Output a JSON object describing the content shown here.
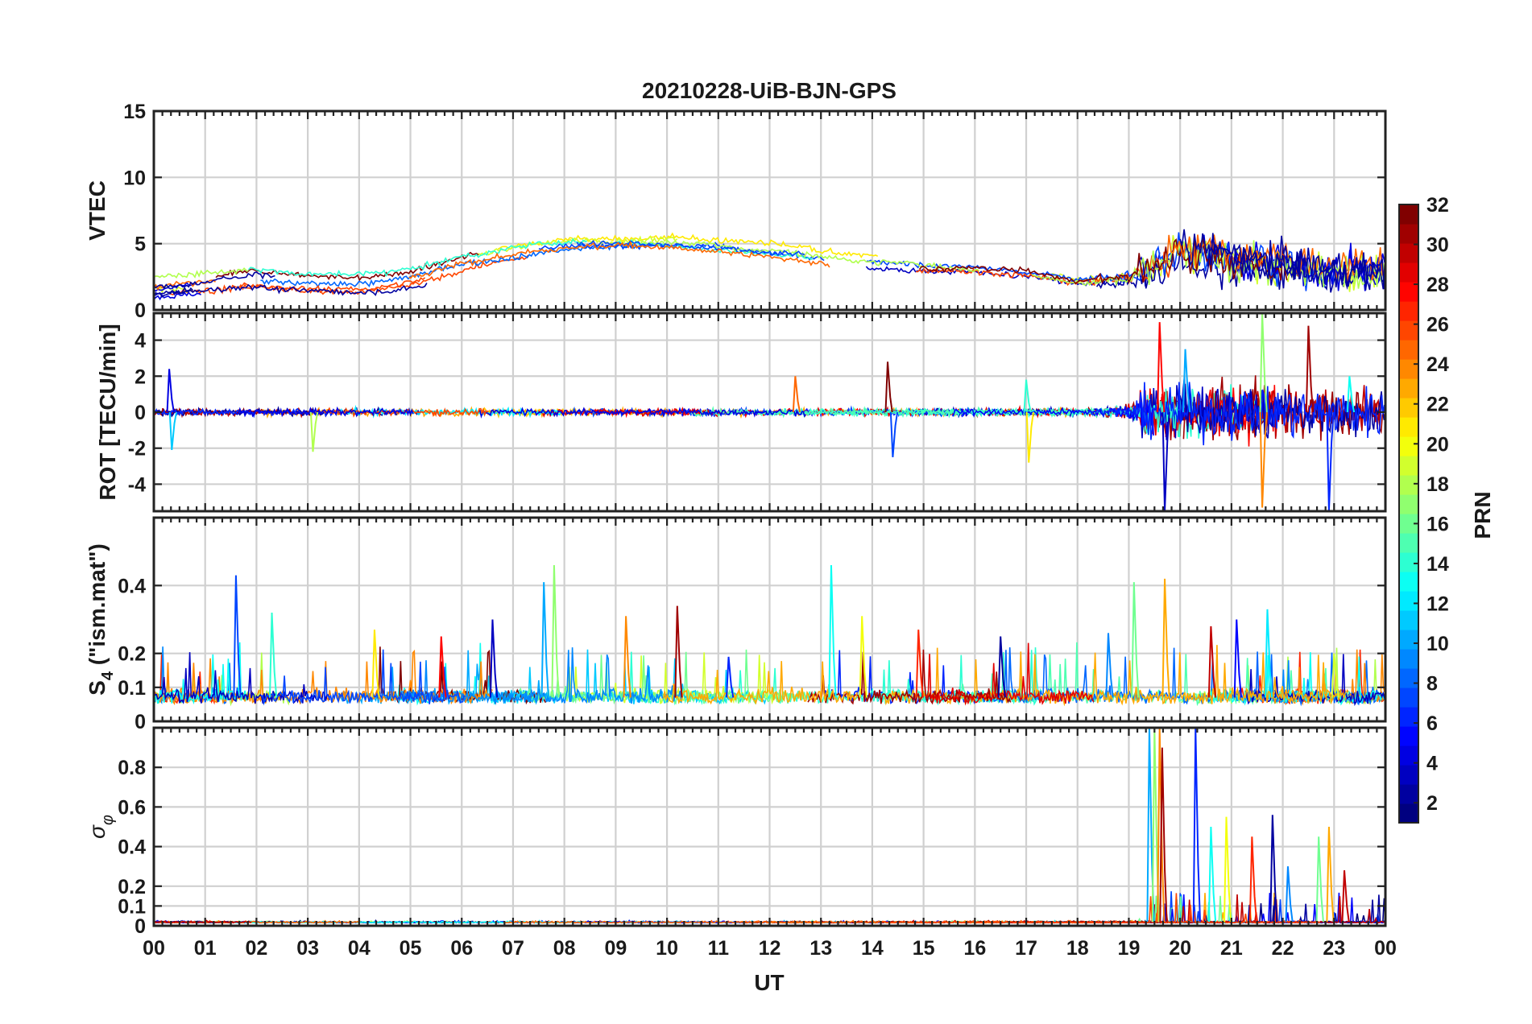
{
  "chart_data": [
    {
      "type": "line",
      "panel": "vtec",
      "title": "20210228-UiB-BJN-GPS",
      "ylabel": "VTEC",
      "ylim": [
        0,
        15
      ],
      "yticks": [
        "0",
        "5",
        "10",
        "15"
      ],
      "ytick_values": [
        0,
        5,
        10,
        15
      ],
      "xlim": [
        0,
        24
      ],
      "xticks": [
        "00",
        "01",
        "02",
        "03",
        "04",
        "05",
        "06",
        "07",
        "08",
        "09",
        "10",
        "11",
        "12",
        "13",
        "14",
        "15",
        "16",
        "17",
        "18",
        "19",
        "20",
        "21",
        "22",
        "23",
        "00"
      ],
      "trend": [
        [
          0,
          1.8
        ],
        [
          1,
          2.2
        ],
        [
          2,
          2.6
        ],
        [
          3,
          2.2
        ],
        [
          4,
          2.2
        ],
        [
          5,
          2.6
        ],
        [
          6,
          3.6
        ],
        [
          7,
          4.4
        ],
        [
          8,
          4.9
        ],
        [
          9,
          5.0
        ],
        [
          10,
          5.0
        ],
        [
          11,
          4.8
        ],
        [
          12,
          4.5
        ],
        [
          13,
          4.0
        ],
        [
          14,
          3.6
        ],
        [
          15,
          3.4
        ],
        [
          16,
          3.3
        ],
        [
          17,
          3.0
        ],
        [
          18,
          2.4
        ],
        [
          19,
          2.6
        ],
        [
          20,
          4.6
        ],
        [
          21,
          3.8
        ],
        [
          22,
          3.6
        ],
        [
          23,
          3.0
        ],
        [
          24,
          3.0
        ]
      ],
      "series_note": "GPS satellites colored by PRN (1-32)"
    },
    {
      "type": "line",
      "panel": "rot",
      "ylabel": "ROT [TECU/min]",
      "ylim": [
        -5.5,
        5.5
      ],
      "yticks": [
        "-4",
        "-2",
        "0",
        "2",
        "4"
      ],
      "ytick_values": [
        -4,
        -2,
        0,
        2,
        4
      ],
      "xlim": [
        0,
        24
      ],
      "spikes": [
        [
          0.3,
          2.4
        ],
        [
          0.35,
          -2.1
        ],
        [
          3.1,
          -2.2
        ],
        [
          12.5,
          2.0
        ],
        [
          14.3,
          2.8
        ],
        [
          14.4,
          -2.5
        ],
        [
          17.0,
          1.8
        ],
        [
          17.05,
          -2.8
        ],
        [
          19.6,
          5.0
        ],
        [
          19.7,
          -5.5
        ],
        [
          20.1,
          3.5
        ],
        [
          21.6,
          5.5
        ],
        [
          21.6,
          -5.3
        ],
        [
          22.5,
          4.8
        ],
        [
          22.9,
          -5.5
        ],
        [
          23.3,
          2.0
        ]
      ]
    },
    {
      "type": "line",
      "panel": "s4",
      "ylabel": "S4 (\"ism.mat\")",
      "ylabel_main": "S",
      "ylabel_sub": "4",
      "ylabel_rest": " (\"ism.mat\")",
      "ylim": [
        0,
        0.6
      ],
      "yticks": [
        "0",
        "0.1",
        "0.2",
        "0.4"
      ],
      "ytick_values": [
        0,
        0.1,
        0.2,
        0.4
      ],
      "xlim": [
        0,
        24
      ],
      "peaks": [
        [
          1.6,
          0.43
        ],
        [
          2.3,
          0.32
        ],
        [
          4.3,
          0.27
        ],
        [
          5.6,
          0.25
        ],
        [
          6.6,
          0.3
        ],
        [
          7.6,
          0.41
        ],
        [
          7.8,
          0.46
        ],
        [
          9.2,
          0.31
        ],
        [
          10.2,
          0.34
        ],
        [
          11.2,
          0.19
        ],
        [
          13.2,
          0.46
        ],
        [
          13.8,
          0.31
        ],
        [
          14.9,
          0.27
        ],
        [
          16.5,
          0.25
        ],
        [
          18.6,
          0.26
        ],
        [
          19.1,
          0.41
        ],
        [
          19.7,
          0.42
        ],
        [
          20.6,
          0.28
        ],
        [
          21.1,
          0.3
        ],
        [
          21.7,
          0.33
        ],
        [
          23.0,
          0.2
        ]
      ]
    },
    {
      "type": "line",
      "panel": "sigma_phi",
      "ylabel": "σ φ",
      "ylabel_main": "σ",
      "ylabel_sub": "φ",
      "ylim": [
        0,
        1.0
      ],
      "yticks": [
        "0",
        "0.1",
        "0.2",
        "0.4",
        "0.6",
        "0.8"
      ],
      "ytick_values": [
        0,
        0.1,
        0.2,
        0.4,
        0.6,
        0.8
      ],
      "xlabel": "UT",
      "xlim": [
        0,
        24
      ],
      "spikes": [
        [
          19.4,
          1.0
        ],
        [
          19.5,
          1.0
        ],
        [
          19.6,
          1.0
        ],
        [
          19.65,
          0.9
        ],
        [
          20.3,
          1.0
        ],
        [
          20.6,
          0.5
        ],
        [
          20.9,
          0.55
        ],
        [
          21.4,
          0.45
        ],
        [
          21.8,
          0.56
        ],
        [
          22.1,
          0.3
        ],
        [
          22.7,
          0.45
        ],
        [
          22.9,
          0.5
        ],
        [
          23.2,
          0.28
        ]
      ]
    }
  ],
  "colorbar": {
    "label": "PRN",
    "range": [
      1,
      32
    ],
    "ticks": [
      "2",
      "4",
      "6",
      "8",
      "10",
      "12",
      "14",
      "16",
      "18",
      "20",
      "22",
      "24",
      "26",
      "28",
      "30",
      "32"
    ],
    "tick_values": [
      2,
      4,
      6,
      8,
      10,
      12,
      14,
      16,
      18,
      20,
      22,
      24,
      26,
      28,
      30,
      32
    ],
    "colormap": "jet"
  }
}
